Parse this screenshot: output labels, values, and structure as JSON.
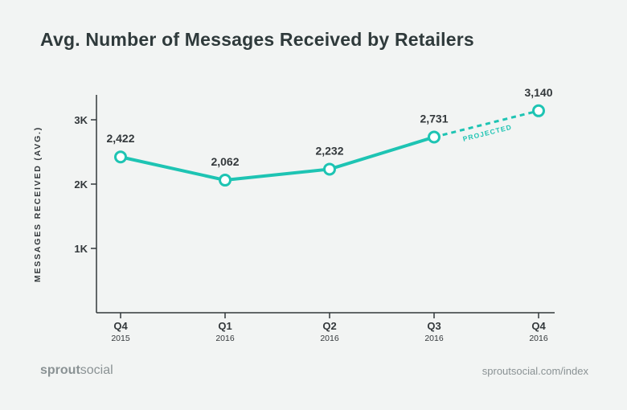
{
  "title": "Avg. Number of Messages Received by Retailers",
  "branding": {
    "part1": "sprout",
    "part2": "social"
  },
  "source": "sproutsocial.com/index",
  "colors": {
    "line": "#1ec4b3",
    "axis": "#33383b",
    "text": "#33383b"
  },
  "chart_data": {
    "type": "line",
    "ylabel": "MESSAGES RECEIVED (AVG.)",
    "xlabel": "",
    "ylim": [
      0,
      3400
    ],
    "yticks": [
      {
        "value": 1000,
        "label": "1K"
      },
      {
        "value": 2000,
        "label": "2K"
      },
      {
        "value": 3000,
        "label": "3K"
      }
    ],
    "categories": [
      {
        "q": "Q4",
        "year": "2015"
      },
      {
        "q": "Q1",
        "year": "2016"
      },
      {
        "q": "Q2",
        "year": "2016"
      },
      {
        "q": "Q3",
        "year": "2016"
      },
      {
        "q": "Q4",
        "year": "2016"
      }
    ],
    "values": [
      2422,
      2062,
      2232,
      2731,
      3140
    ],
    "data_labels": [
      "2,422",
      "2,062",
      "2,232",
      "2,731",
      "3,140"
    ],
    "projected_from_index": 3,
    "annotation": "PROJECTED",
    "grid": false
  }
}
